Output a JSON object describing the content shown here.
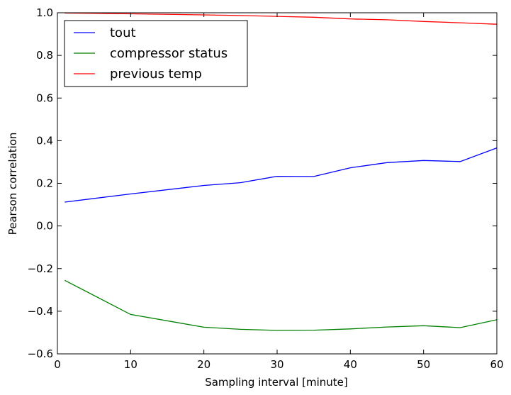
{
  "chart_data": {
    "type": "line",
    "title": "",
    "xlabel": "Sampling interval [minute]",
    "ylabel": "Pearson correlation",
    "xlim": [
      0,
      60
    ],
    "ylim": [
      -0.6,
      1.0
    ],
    "xticks": [
      0,
      10,
      20,
      30,
      40,
      50,
      60
    ],
    "xtick_labels": [
      "0",
      "10",
      "20",
      "30",
      "40",
      "50",
      "60"
    ],
    "yticks": [
      -0.6,
      -0.4,
      -0.2,
      0.0,
      0.2,
      0.4,
      0.6,
      0.8,
      1.0
    ],
    "ytick_labels": [
      "−0.6",
      "−0.4",
      "−0.2",
      "0.0",
      "0.2",
      "0.4",
      "0.6",
      "0.8",
      "1.0"
    ],
    "grid": false,
    "legend_position": "top-left",
    "x": [
      1,
      10,
      20,
      25,
      30,
      35,
      40,
      45,
      50,
      55,
      60
    ],
    "series": [
      {
        "name": "tout",
        "color": "#0000ff",
        "values": [
          0.112,
          0.15,
          0.19,
          0.203,
          0.233,
          0.232,
          0.273,
          0.297,
          0.307,
          0.302,
          0.366
        ]
      },
      {
        "name": "compressor status",
        "color": "#008000",
        "values": [
          -0.255,
          -0.415,
          -0.475,
          -0.485,
          -0.49,
          -0.489,
          -0.483,
          -0.474,
          -0.468,
          -0.477,
          -0.44
        ]
      },
      {
        "name": "previous temp",
        "color": "#ff0000",
        "values": [
          0.999,
          0.995,
          0.99,
          0.987,
          0.983,
          0.979,
          0.971,
          0.967,
          0.959,
          0.953,
          0.946
        ]
      }
    ]
  }
}
